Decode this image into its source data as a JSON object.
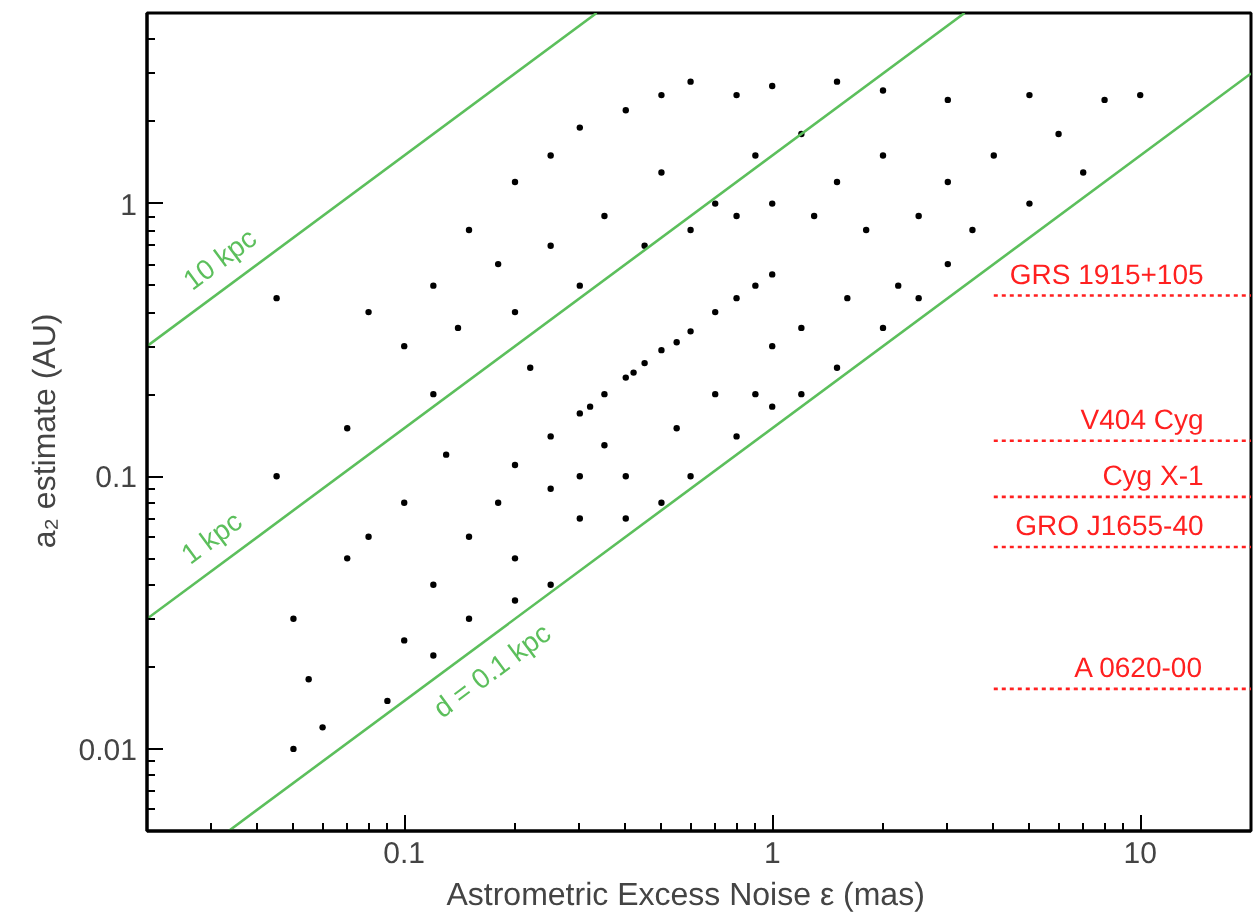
{
  "chart_data": {
    "type": "scatter",
    "xlabel": "Astrometric Excess Noise  ε   (mas)",
    "ylabel": "a₂ estimate   (AU)",
    "log": "xy",
    "grid": false,
    "xlim": [
      0.02,
      20
    ],
    "ylim": [
      0.005,
      5
    ],
    "xticks": [
      0.1,
      1,
      10
    ],
    "yticks": [
      0.01,
      0.1,
      1
    ],
    "series": [
      {
        "color": "#000000",
        "marker": "circle",
        "x": [
          0.2,
          0.25,
          0.3,
          0.35,
          0.4,
          0.45,
          0.5,
          0.6,
          0.7,
          0.8,
          0.9,
          1.0,
          0.55,
          0.32,
          0.42,
          0.1,
          0.12,
          0.15,
          0.2,
          0.25,
          0.3,
          0.4,
          0.5,
          0.6,
          0.8,
          1,
          1.5,
          2,
          3,
          5,
          8,
          10,
          6,
          4,
          3,
          2,
          1.5,
          1.2,
          0.9,
          0.7,
          0.5,
          0.35,
          0.25,
          0.18,
          0.14,
          0.3,
          0.45,
          0.6,
          0.8,
          1.0,
          1.3,
          1.8,
          2.5,
          3.5,
          2.2,
          1.6,
          1.2,
          3,
          5,
          7,
          0.08,
          0.045,
          0.07,
          0.2,
          0.12,
          0.22,
          0.05,
          0.055,
          0.06,
          0.05,
          0.07,
          0.09,
          0.1,
          0.12,
          0.15,
          0.15,
          0.2,
          0.25,
          0.3,
          0.4,
          0.5,
          0.6,
          0.8,
          1.0,
          1.2,
          1.5,
          2,
          1.0,
          0.7,
          0.4,
          0.3,
          0.18,
          0.1,
          0.08,
          0.045,
          0.13,
          0.25,
          0.35,
          0.55,
          0.9,
          0.12,
          0.2,
          2.5
        ],
        "values": [
          0.11,
          0.14,
          0.17,
          0.2,
          0.23,
          0.26,
          0.29,
          0.34,
          0.4,
          0.45,
          0.5,
          0.55,
          0.31,
          0.18,
          0.24,
          0.3,
          0.5,
          0.8,
          1.2,
          1.5,
          1.9,
          2.2,
          2.5,
          2.8,
          2.5,
          2.7,
          2.8,
          2.6,
          2.4,
          2.5,
          2.4,
          2.5,
          1.8,
          1.5,
          1.2,
          1.5,
          1.2,
          1.8,
          1.5,
          1.0,
          1.3,
          0.9,
          0.7,
          0.6,
          0.35,
          0.5,
          0.7,
          0.8,
          0.9,
          1.0,
          0.9,
          0.8,
          0.9,
          0.8,
          0.5,
          0.45,
          0.35,
          0.6,
          1.0,
          1.3,
          0.4,
          0.45,
          0.15,
          0.4,
          0.2,
          0.25,
          0.03,
          0.018,
          0.012,
          0.01,
          0.05,
          0.015,
          0.025,
          0.04,
          0.03,
          0.06,
          0.05,
          0.04,
          0.07,
          0.07,
          0.08,
          0.1,
          0.14,
          0.18,
          0.2,
          0.25,
          0.35,
          0.3,
          0.2,
          0.1,
          0.1,
          0.08,
          0.08,
          0.06,
          0.1,
          0.12,
          0.09,
          0.13,
          0.15,
          0.2,
          0.022,
          0.035,
          0.45
        ]
      },
      {
        "type": "line",
        "name": "10 kpc",
        "color": "#5cbf5c",
        "line_style": "solid",
        "x": [
          0.02,
          0.3333
        ],
        "values": [
          0.3,
          5
        ]
      },
      {
        "type": "line",
        "name": "1 kpc",
        "color": "#5cbf5c",
        "line_style": "solid",
        "x": [
          0.02,
          3.333
        ],
        "values": [
          0.03,
          5
        ]
      },
      {
        "type": "line",
        "name": "d = 0.1 kpc",
        "color": "#5cbf5c",
        "line_style": "solid",
        "x": [
          0.03333,
          20
        ],
        "values": [
          0.005,
          3
        ]
      },
      {
        "type": "line",
        "name": "GRS 1915+105",
        "color": "#ff2020",
        "line_style": "dotted",
        "x": [
          4,
          20
        ],
        "values": [
          0.46,
          0.46
        ]
      },
      {
        "type": "line",
        "name": "V404 Cyg",
        "color": "#ff2020",
        "line_style": "dotted",
        "x": [
          4,
          20
        ],
        "values": [
          0.135,
          0.135
        ]
      },
      {
        "type": "line",
        "name": "Cyg X-1",
        "color": "#ff2020",
        "line_style": "dotted",
        "x": [
          4,
          20
        ],
        "values": [
          0.084,
          0.084
        ]
      },
      {
        "type": "line",
        "name": "GRO J1655-40",
        "color": "#ff2020",
        "line_style": "dotted",
        "x": [
          4,
          20
        ],
        "values": [
          0.055,
          0.055
        ]
      },
      {
        "type": "line",
        "name": "A 0620-00",
        "color": "#ff2020",
        "line_style": "dotted",
        "x": [
          4,
          20
        ],
        "values": [
          0.0166,
          0.0166
        ]
      }
    ]
  }
}
